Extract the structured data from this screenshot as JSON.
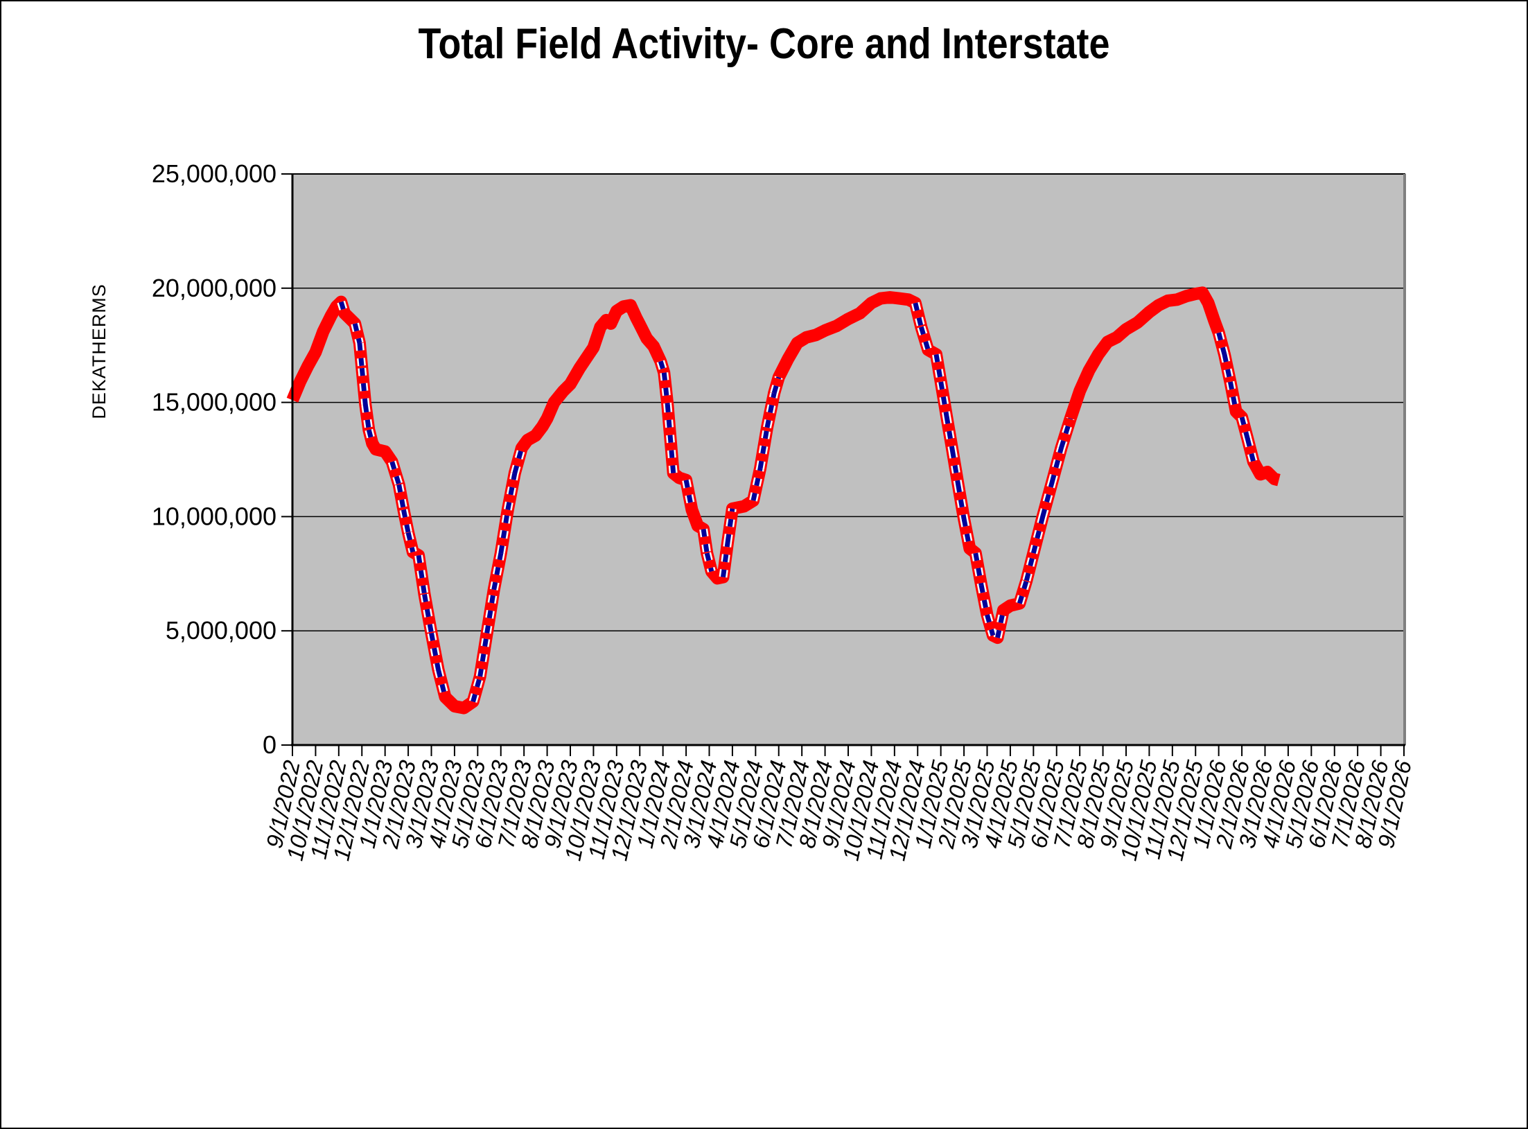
{
  "title": "Total Field Activity- Core and Interstate",
  "y_axis": {
    "label": "DEKATHERMS",
    "tick_values": [
      0,
      5000000,
      10000000,
      15000000,
      20000000,
      25000000
    ],
    "tick_labels": [
      "0",
      "5,000,000",
      "10,000,000",
      "15,000,000",
      "20,000,000",
      "25,000,000"
    ]
  },
  "x_axis": {
    "labels": [
      "9/1/2022",
      "10/1/2022",
      "11/1/2022",
      "12/1/2022",
      "1/1/2023",
      "2/1/2023",
      "3/1/2023",
      "4/1/2023",
      "5/1/2023",
      "6/1/2023",
      "7/1/2023",
      "8/1/2023",
      "9/1/2023",
      "10/1/2023",
      "11/1/2023",
      "12/1/2023",
      "1/1/2024",
      "2/1/2024",
      "3/1/2024",
      "4/1/2024",
      "5/1/2024",
      "6/1/2024",
      "7/1/2024",
      "8/1/2024",
      "9/1/2024",
      "10/1/2024",
      "11/1/2024",
      "12/1/2024",
      "1/1/2025",
      "2/1/2025",
      "3/1/2025",
      "4/1/2025",
      "5/1/2025",
      "6/1/2025",
      "7/1/2025",
      "8/1/2025",
      "9/1/2025",
      "10/1/2025",
      "11/1/2025",
      "12/1/2025",
      "1/1/2026",
      "2/1/2026",
      "3/1/2026",
      "4/1/2026",
      "5/1/2026",
      "6/1/2026",
      "7/1/2026",
      "8/1/2026",
      "9/1/2026"
    ]
  },
  "colors": {
    "plot_background": "#c0c0c0",
    "red_line": "#ff0000",
    "blue_dash": "#000099",
    "dash_casing": "#ffffff",
    "gridline": "#000000",
    "axis": "#000000",
    "plot_right_edge": "#808080",
    "text": "#000000",
    "page_background": "#ffffff"
  },
  "chart_data": {
    "type": "line",
    "title": "Total Field Activity- Core and Interstate",
    "xlabel": "",
    "ylabel": "DEKATHERMS",
    "ylim": [
      0,
      25000000
    ],
    "grid": "horizontal",
    "legend": "none",
    "x_unit": "months_after_9/1/2022",
    "x_category_count": 49,
    "series": [
      {
        "name": "red_line",
        "style": "solid thick",
        "color": "#ff0000",
        "x": [
          0,
          0.33,
          0.67,
          1.0,
          1.33,
          1.67,
          1.9,
          2.1,
          2.25,
          2.4,
          2.7,
          2.9,
          3.0,
          3.15,
          3.3,
          3.45,
          3.6,
          4.0,
          4.3,
          4.6,
          4.8,
          5.0,
          5.2,
          5.45,
          5.7,
          6.0,
          6.3,
          6.6,
          7.0,
          7.4,
          7.8,
          8.1,
          8.4,
          8.7,
          9.0,
          9.3,
          9.6,
          9.9,
          10.15,
          10.5,
          10.8,
          11.0,
          11.3,
          11.7,
          12.0,
          12.4,
          12.8,
          13.0,
          13.3,
          13.55,
          13.75,
          14.0,
          14.3,
          14.6,
          14.85,
          15.0,
          15.3,
          15.6,
          15.9,
          16.05,
          16.2,
          16.45,
          16.7,
          17.0,
          17.25,
          17.5,
          17.75,
          17.9,
          18.1,
          18.35,
          18.6,
          18.8,
          19.0,
          19.5,
          19.9,
          20.2,
          20.5,
          20.8,
          21.0,
          21.4,
          21.8,
          22.2,
          22.6,
          23.0,
          23.5,
          24.0,
          24.5,
          25.0,
          25.4,
          25.8,
          26.2,
          26.6,
          26.9,
          27.15,
          27.45,
          27.8,
          28.0,
          28.25,
          28.5,
          28.75,
          29.0,
          29.25,
          29.5,
          29.75,
          30.0,
          30.25,
          30.45,
          30.7,
          31.0,
          31.4,
          31.7,
          32.0,
          32.4,
          32.8,
          33.2,
          33.6,
          34.0,
          34.4,
          34.8,
          35.2,
          35.6,
          36.0,
          36.5,
          37.0,
          37.4,
          37.8,
          38.2,
          38.6,
          39.0,
          39.3,
          39.55,
          39.8,
          40.0,
          40.25,
          40.5,
          40.75,
          41.0,
          41.25,
          41.5,
          41.8,
          42.1,
          42.4,
          42.6
        ],
        "values": [
          15100000,
          15900000,
          16600000,
          17200000,
          18100000,
          18800000,
          19200000,
          19400000,
          18900000,
          18750000,
          18450000,
          17600000,
          16500000,
          14900000,
          13800000,
          13200000,
          12950000,
          12850000,
          12400000,
          11400000,
          10300000,
          9300000,
          8450000,
          8300000,
          6600000,
          4900000,
          3300000,
          2100000,
          1700000,
          1620000,
          1900000,
          3000000,
          4900000,
          6800000,
          8400000,
          10300000,
          11900000,
          13000000,
          13350000,
          13550000,
          13950000,
          14300000,
          15000000,
          15500000,
          15800000,
          16500000,
          17100000,
          17400000,
          18300000,
          18600000,
          18450000,
          19000000,
          19200000,
          19250000,
          18700000,
          18400000,
          17800000,
          17450000,
          16800000,
          16300000,
          14900000,
          11900000,
          11700000,
          11600000,
          10300000,
          9600000,
          9450000,
          8400000,
          7600000,
          7300000,
          7350000,
          8900000,
          10350000,
          10450000,
          10700000,
          12100000,
          13900000,
          15400000,
          16100000,
          16900000,
          17600000,
          17850000,
          17950000,
          18150000,
          18350000,
          18650000,
          18900000,
          19350000,
          19550000,
          19600000,
          19550000,
          19500000,
          19350000,
          18300000,
          17300000,
          17100000,
          15900000,
          14400000,
          12900000,
          11400000,
          9900000,
          8600000,
          8400000,
          7000000,
          5700000,
          4800000,
          4700000,
          5900000,
          6100000,
          6200000,
          7200000,
          8400000,
          10000000,
          11500000,
          13000000,
          14300000,
          15500000,
          16400000,
          17100000,
          17650000,
          17850000,
          18200000,
          18500000,
          18950000,
          19250000,
          19450000,
          19500000,
          19650000,
          19750000,
          19800000,
          19350000,
          18600000,
          18050000,
          17100000,
          15900000,
          14600000,
          14350000,
          13400000,
          12400000,
          11850000,
          11950000,
          11650000,
          11600000
        ]
      },
      {
        "name": "blue_dashed_line",
        "style": "dashed, drawn beneath red line, visible only on steep segments",
        "color": "#000099",
        "note": "tracks the red_line series values"
      }
    ]
  }
}
